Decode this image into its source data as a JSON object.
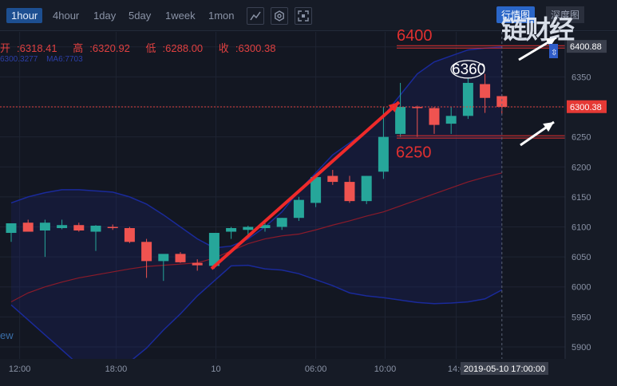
{
  "toolbar": {
    "timeframes": [
      "1hour",
      "4hour",
      "1day",
      "5day",
      "1week",
      "1mon"
    ],
    "active_timeframe": "1hour",
    "tools": [
      "chart-type-icon",
      "settings-icon",
      "fullscreen-icon"
    ],
    "tabs": [
      "行情图",
      "深度图"
    ],
    "active_tab": "行情图",
    "logo": "链财经"
  },
  "ohlc": {
    "open_label": "开",
    "open": "6318.41",
    "high_label": "高",
    "high": "6320.92",
    "low_label": "低",
    "low": "6288.00",
    "close_label": "收",
    "close": "6300.38"
  },
  "indicator_line": [
    "6300.3277",
    "MA6:7703"
  ],
  "watermark": "ew",
  "colors": {
    "up": "#26a69a",
    "down": "#ef5350",
    "bg": "#131722",
    "band": "#1a2a9a",
    "ma": "#8b1a2a",
    "annotation": "#e03030",
    "price_line": "#e04040"
  },
  "chart_data": {
    "type": "candlestick",
    "x_ticks": [
      "12:00",
      "18:00",
      "10",
      "06:00",
      "10:00",
      "14:0"
    ],
    "crosshair_time": "2019-05-10 17:00:00",
    "y_ticks": [
      6400,
      6350,
      6300,
      6250,
      6200,
      6150,
      6100,
      6050,
      6000,
      5950,
      5900
    ],
    "ylim": [
      5880,
      6425
    ],
    "last_price": "6300.38",
    "marked_price": "6400.88",
    "candles": [
      {
        "o": 6090,
        "h": 6105,
        "l": 6075,
        "c": 6106
      },
      {
        "o": 6107,
        "h": 6112,
        "l": 6092,
        "c": 6092
      },
      {
        "o": 6094,
        "h": 6112,
        "l": 6050,
        "c": 6107
      },
      {
        "o": 6098,
        "h": 6112,
        "l": 6096,
        "c": 6103
      },
      {
        "o": 6103,
        "h": 6107,
        "l": 6092,
        "c": 6094
      },
      {
        "o": 6092,
        "h": 6103,
        "l": 6060,
        "c": 6102
      },
      {
        "o": 6100,
        "h": 6104,
        "l": 6095,
        "c": 6098
      },
      {
        "o": 6098,
        "h": 6100,
        "l": 6073,
        "c": 6075
      },
      {
        "o": 6075,
        "h": 6080,
        "l": 6015,
        "c": 6043
      },
      {
        "o": 6043,
        "h": 6050,
        "l": 6010,
        "c": 6055
      },
      {
        "o": 6055,
        "h": 6058,
        "l": 6040,
        "c": 6041
      },
      {
        "o": 6040,
        "h": 6046,
        "l": 6027,
        "c": 6036
      },
      {
        "o": 6035,
        "h": 6090,
        "l": 6030,
        "c": 6090
      },
      {
        "o": 6092,
        "h": 6100,
        "l": 6080,
        "c": 6098
      },
      {
        "o": 6095,
        "h": 6102,
        "l": 6085,
        "c": 6100
      },
      {
        "o": 6098,
        "h": 6106,
        "l": 6092,
        "c": 6103
      },
      {
        "o": 6100,
        "h": 6115,
        "l": 6095,
        "c": 6115
      },
      {
        "o": 6115,
        "h": 6150,
        "l": 6110,
        "c": 6145
      },
      {
        "o": 6140,
        "h": 6182,
        "l": 6133,
        "c": 6183
      },
      {
        "o": 6185,
        "h": 6195,
        "l": 6170,
        "c": 6175
      },
      {
        "o": 6175,
        "h": 6185,
        "l": 6140,
        "c": 6143
      },
      {
        "o": 6143,
        "h": 6185,
        "l": 6138,
        "c": 6185
      },
      {
        "o": 6192,
        "h": 6300,
        "l": 6180,
        "c": 6250
      },
      {
        "o": 6255,
        "h": 6340,
        "l": 6250,
        "c": 6300
      },
      {
        "o": 6300,
        "h": 6302,
        "l": 6250,
        "c": 6298
      },
      {
        "o": 6298,
        "h": 6300,
        "l": 6255,
        "c": 6270
      },
      {
        "o": 6272,
        "h": 6300,
        "l": 6255,
        "c": 6285
      },
      {
        "o": 6285,
        "h": 6348,
        "l": 6280,
        "c": 6340
      },
      {
        "o": 6338,
        "h": 6355,
        "l": 6290,
        "c": 6315
      },
      {
        "o": 6318,
        "h": 6321,
        "l": 6288,
        "c": 6300
      }
    ],
    "bands": {
      "upper": [
        6140,
        6150,
        6157,
        6162,
        6162,
        6160,
        6158,
        6150,
        6138,
        6120,
        6100,
        6080,
        6065,
        6068,
        6080,
        6100,
        6125,
        6160,
        6190,
        6220,
        6240,
        6260,
        6285,
        6320,
        6355,
        6375,
        6385,
        6395,
        6398,
        6400
      ],
      "lower": [
        5970,
        5945,
        5920,
        5895,
        5870,
        5855,
        5860,
        5875,
        5898,
        5928,
        5955,
        5985,
        6010,
        6035,
        6036,
        6030,
        6028,
        6022,
        6012,
        6002,
        5990,
        5985,
        5982,
        5978,
        5974,
        5972,
        5973,
        5975,
        5980,
        5995
      ]
    },
    "ma": [
      5975,
      5990,
      6000,
      6008,
      6015,
      6020,
      6025,
      6030,
      6034,
      6036,
      6038,
      6040,
      6048,
      6060,
      6072,
      6080,
      6085,
      6088,
      6095,
      6103,
      6110,
      6118,
      6125,
      6135,
      6145,
      6155,
      6165,
      6175,
      6183,
      6190
    ],
    "annotations": [
      {
        "text": "6400",
        "value": 6400
      },
      {
        "text": "6360",
        "value": 6360
      },
      {
        "text": "6250",
        "value": 6250
      }
    ]
  }
}
